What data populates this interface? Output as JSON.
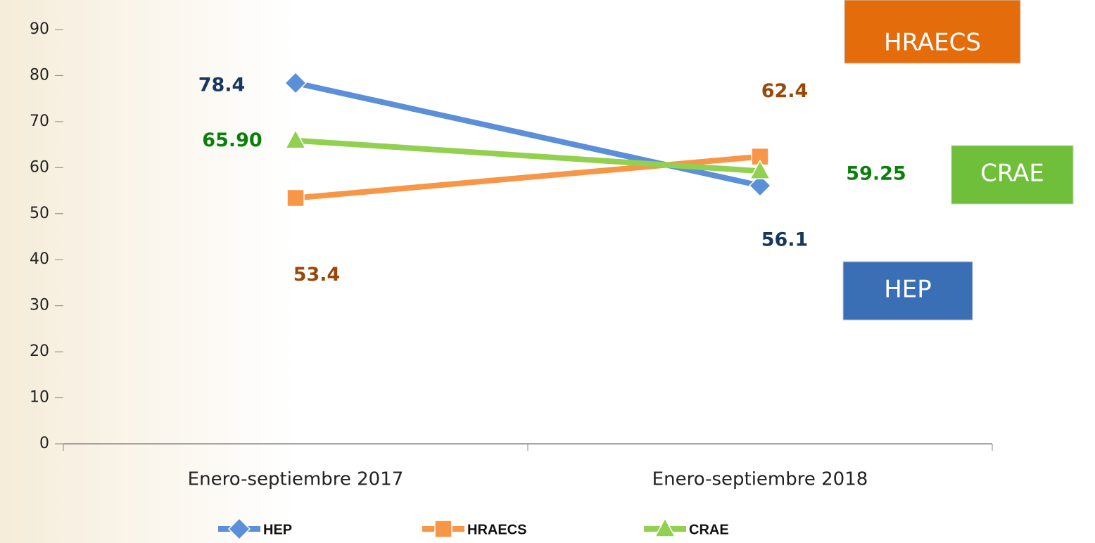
{
  "chart_data": {
    "type": "line",
    "categories": [
      "Enero-septiembre 2017",
      "Enero-septiembre 2018"
    ],
    "series": [
      {
        "name": "HEP",
        "color": "#5b8fd9",
        "label_color": "#17375e",
        "marker": "diamond",
        "values": [
          78.4,
          56.1
        ]
      },
      {
        "name": "HRAECS",
        "color": "#f79646",
        "label_color": "#984807",
        "marker": "square",
        "values": [
          53.4,
          62.4
        ]
      },
      {
        "name": "CRAE",
        "color": "#92d050",
        "label_color": "#0a7f0a",
        "marker": "triangle",
        "values": [
          65.9,
          59.25
        ],
        "value_labels": [
          "65.90",
          "59.25"
        ]
      }
    ],
    "ylim": [
      0,
      90
    ],
    "yticks": [
      0,
      10,
      20,
      30,
      40,
      50,
      60,
      70,
      80,
      90
    ],
    "legend": "bottom",
    "annotations": [
      {
        "text": "HRAECS",
        "color": "#e46c0a"
      },
      {
        "text": "CRAE",
        "color": "#6fbf3a"
      },
      {
        "text": "HEP",
        "color": "#3a6fb5"
      }
    ]
  }
}
